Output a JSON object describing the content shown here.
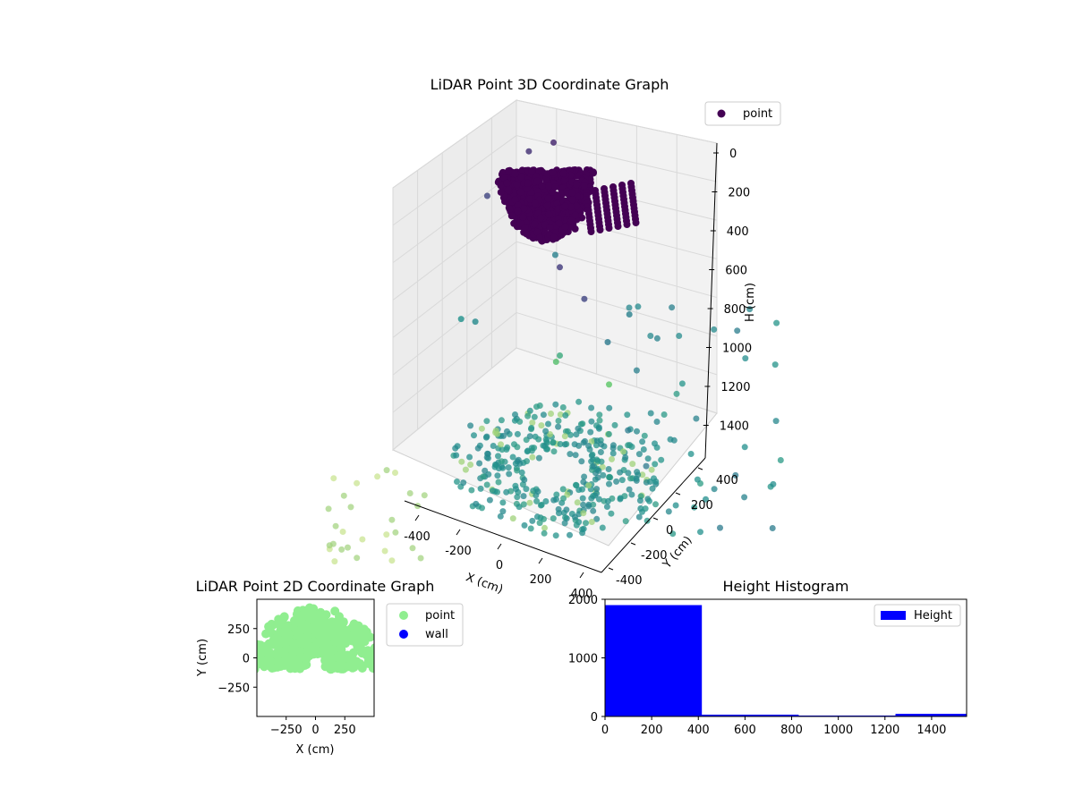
{
  "chart_data": [
    {
      "type": "scatter",
      "title": "LiDAR Point 3D Coordinate Graph",
      "xlabel": "X (cm)",
      "ylabel": "Y (cm)",
      "zlabel": "H (cm)",
      "x_ticks": [
        "-400",
        "-200",
        "0",
        "200",
        "400"
      ],
      "y_ticks": [
        "-400",
        "-200",
        "0",
        "200",
        "400"
      ],
      "z_ticks": [
        "0",
        "200",
        "400",
        "600",
        "800",
        "1000",
        "1200",
        "1400"
      ],
      "z_inverted": true,
      "colormap": "viridis",
      "legend": {
        "placement": "top-right",
        "entries": [
          {
            "label": "point",
            "color": "#440154"
          }
        ]
      },
      "cluster_ceiling": {
        "x_range": [
          -400,
          300
        ],
        "y_range": [
          -300,
          400
        ],
        "h_range": [
          0,
          400
        ],
        "color": "#440154"
      },
      "scatter_points": [
        {
          "x": -350,
          "y": 300,
          "h": 200
        },
        {
          "x": -250,
          "y": 350,
          "h": 150
        },
        {
          "x": -420,
          "y": 50,
          "h": 300
        },
        {
          "x": 150,
          "y": -300,
          "h": 250
        },
        {
          "x": 320,
          "y": -380,
          "h": 300
        },
        {
          "x": 350,
          "y": -200,
          "h": 600
        },
        {
          "x": -300,
          "y": -250,
          "h": 700
        },
        {
          "x": -200,
          "y": 300,
          "h": 650
        },
        {
          "x": 0,
          "y": 0,
          "h": 900
        },
        {
          "x": -100,
          "y": 150,
          "h": 1050
        },
        {
          "x": 150,
          "y": 200,
          "h": 1100
        },
        {
          "x": -400,
          "y": -200,
          "h": 750
        },
        {
          "x": 300,
          "y": 100,
          "h": 650
        }
      ],
      "floor_ring": {
        "h": 1500,
        "radius_range": [
          150,
          480
        ],
        "color": "#2a8a89"
      },
      "outer_points_color": "#9fd17a"
    },
    {
      "type": "scatter",
      "title": "LiDAR Point 2D Coordinate Graph",
      "xlabel": "X (cm)",
      "ylabel": "Y (cm)",
      "x_ticks": [
        -250,
        0,
        250
      ],
      "y_ticks": [
        250,
        0,
        -250
      ],
      "xlim": [
        -500,
        500
      ],
      "ylim": [
        -500,
        500
      ],
      "legend": {
        "placement": "right",
        "entries": [
          {
            "label": "point",
            "color": "#90ee90"
          },
          {
            "label": "wall",
            "color": "#0000ff"
          }
        ]
      },
      "series": [
        {
          "name": "point",
          "color": "#90ee90",
          "description_region": {
            "x_range": [
              -500,
              500
            ],
            "y_range": [
              -100,
              500
            ]
          }
        }
      ]
    },
    {
      "type": "bar",
      "title": "Height Histogram",
      "xlabel": "",
      "ylabel": "",
      "x_ticks": [
        0,
        200,
        400,
        600,
        800,
        1000,
        1200,
        1400
      ],
      "y_ticks": [
        0,
        1000,
        2000
      ],
      "xlim": [
        0,
        1550
      ],
      "ylim": [
        0,
        2000
      ],
      "bin_edges": [
        0,
        415,
        830,
        1245,
        1550
      ],
      "values": [
        1900,
        30,
        15,
        45
      ],
      "series": [
        {
          "name": "Height",
          "color": "#0000ff"
        }
      ],
      "legend": {
        "placement": "top-right",
        "entries": [
          {
            "label": "Height",
            "color": "#0000ff"
          }
        ]
      }
    }
  ]
}
